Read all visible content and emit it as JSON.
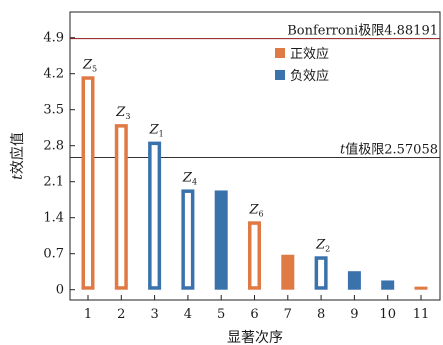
{
  "chart_data": {
    "type": "bar",
    "xlabel": "显著次序",
    "ylabel": "t效应值",
    "ylim": [
      -0.2,
      5.4
    ],
    "yticks": [
      "0",
      "0.7",
      "1.4",
      "2.1",
      "2.8",
      "3.5",
      "4.2",
      "4.9"
    ],
    "categories": [
      "1",
      "2",
      "3",
      "4",
      "5",
      "6",
      "7",
      "8",
      "9",
      "10",
      "11"
    ],
    "values": [
      4.15,
      3.22,
      2.88,
      1.95,
      1.93,
      1.33,
      0.68,
      0.65,
      0.36,
      0.18,
      0.06
    ],
    "sign": [
      "positive",
      "positive",
      "negative",
      "negative",
      "negative",
      "positive",
      "positive",
      "negative",
      "negative",
      "negative",
      "positive"
    ],
    "significant": [
      true,
      true,
      true,
      true,
      false,
      true,
      false,
      true,
      false,
      false,
      false
    ],
    "bar_labels": [
      {
        "index": 0,
        "main": "Z",
        "sub": "5"
      },
      {
        "index": 1,
        "main": "Z",
        "sub": "3"
      },
      {
        "index": 2,
        "main": "Z",
        "sub": "1"
      },
      {
        "index": 3,
        "main": "Z",
        "sub": "4"
      },
      {
        "index": 5,
        "main": "Z",
        "sub": "6"
      },
      {
        "index": 7,
        "main": "Z",
        "sub": "2"
      }
    ],
    "reference_lines": [
      {
        "label": "Bonferroni极限4.88191",
        "value": 4.88191,
        "color": "#8b1a1a"
      },
      {
        "label": "t值极限2.57058",
        "label_prefix": "t",
        "label_rest": "值极限2.57058",
        "value": 2.57058,
        "color": "#333333"
      }
    ],
    "legend": [
      {
        "label": "正效应",
        "color": "#e07a45"
      },
      {
        "label": "负效应",
        "color": "#3a73ac"
      }
    ],
    "legend_position": "top-right",
    "colors": {
      "positive": "#e07a45",
      "negative": "#3a73ac"
    }
  }
}
